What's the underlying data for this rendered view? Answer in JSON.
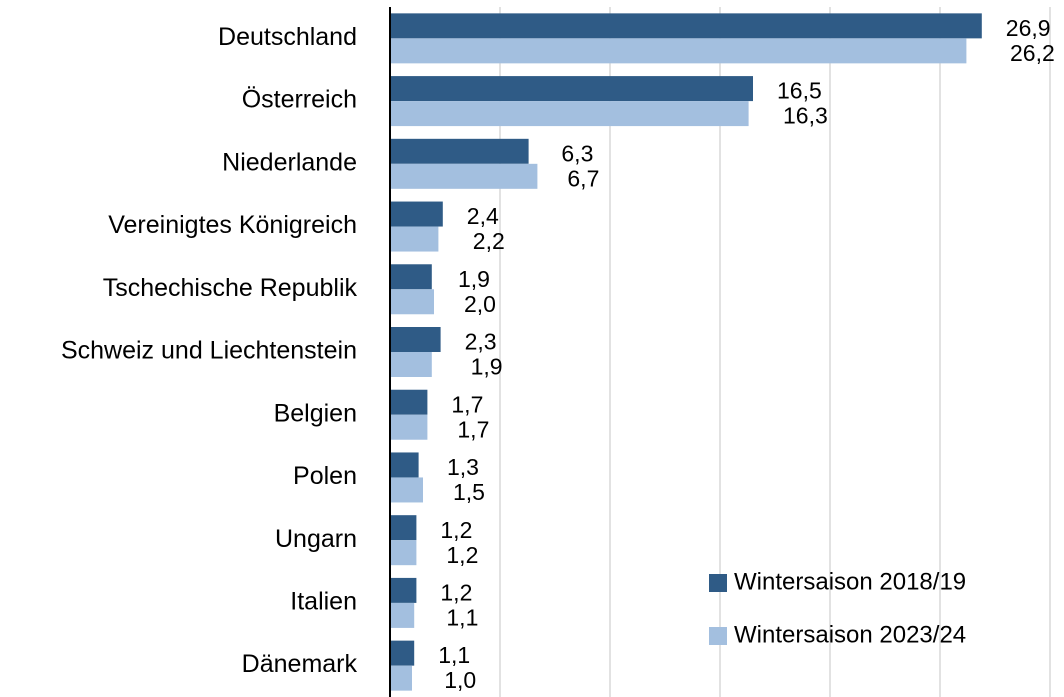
{
  "chart_data": {
    "type": "bar",
    "orientation": "horizontal",
    "categories": [
      "Deutschland",
      "Österreich",
      "Niederlande",
      "Vereinigtes Königreich",
      "Tschechische Republik",
      "Schweiz und Liechtenstein",
      "Belgien",
      "Polen",
      "Ungarn",
      "Italien",
      "Dänemark"
    ],
    "series": [
      {
        "name": "Wintersaison 2018/19",
        "color": "#2f5b86",
        "values": [
          26.9,
          16.5,
          6.3,
          2.4,
          1.9,
          2.3,
          1.7,
          1.3,
          1.2,
          1.2,
          1.1
        ],
        "value_labels": [
          "26,9",
          "16,5",
          "6,3",
          "2,4",
          "1,9",
          "2,3",
          "1,7",
          "1,3",
          "1,2",
          "1,2",
          "1,1"
        ]
      },
      {
        "name": "Wintersaison 2023/24",
        "color": "#a3bfdf",
        "values": [
          26.2,
          16.3,
          6.7,
          2.2,
          2.0,
          1.9,
          1.7,
          1.5,
          1.2,
          1.1,
          1.0
        ],
        "value_labels": [
          "26,2",
          "16,3",
          "6,7",
          "2,2",
          "2,0",
          "1,9",
          "1,7",
          "1,5",
          "1,2",
          "1,1",
          "1,0"
        ]
      }
    ],
    "xlim": [
      0,
      30
    ],
    "xticks": [
      0,
      5,
      10,
      15,
      20,
      25,
      30
    ],
    "grid": true,
    "legend": "lower right"
  }
}
